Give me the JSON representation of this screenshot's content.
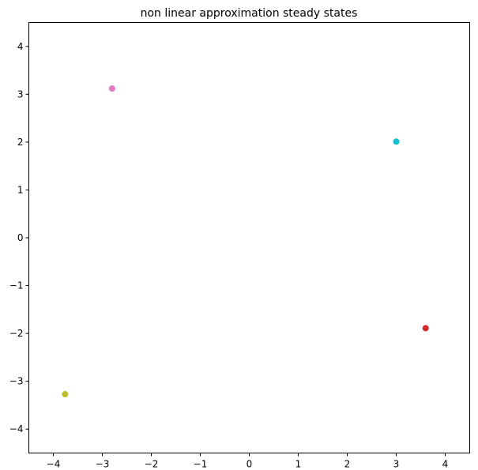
{
  "chart_data": {
    "type": "scatter",
    "title": "non linear approximation steady states",
    "xlabel": "",
    "ylabel": "",
    "xlim": [
      -4.5,
      4.5
    ],
    "ylim": [
      -4.5,
      4.5
    ],
    "xticks": [
      -4,
      -3,
      -2,
      -1,
      0,
      1,
      2,
      3,
      4
    ],
    "yticks": [
      -4,
      -3,
      -2,
      -1,
      0,
      1,
      2,
      3,
      4
    ],
    "xtick_labels": [
      "−4",
      "−3",
      "−2",
      "−1",
      "0",
      "1",
      "2",
      "3",
      "4"
    ],
    "ytick_labels": [
      "−4",
      "−3",
      "−2",
      "−1",
      "0",
      "1",
      "2",
      "3",
      "4"
    ],
    "grid": false,
    "points": [
      {
        "x": -2.8,
        "y": 3.12,
        "color": "#e377c2"
      },
      {
        "x": 3.0,
        "y": 2.01,
        "color": "#17becf"
      },
      {
        "x": 3.6,
        "y": -1.89,
        "color": "#d62728"
      },
      {
        "x": -3.76,
        "y": -3.27,
        "color": "#bcbd22"
      }
    ]
  }
}
